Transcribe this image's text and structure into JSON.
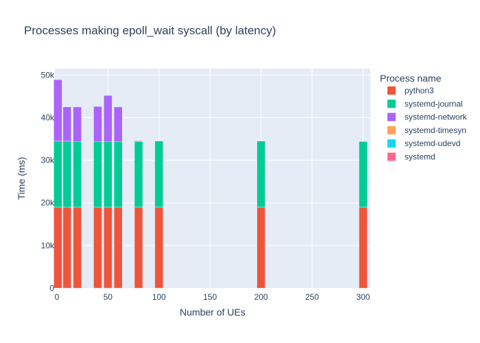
{
  "chart_data": {
    "type": "bar",
    "stacked": true,
    "title": "Processes making epoll_wait syscall (by latency)",
    "xlabel": "Number of UEs",
    "ylabel": "Time (ms)",
    "xlim": [
      -2,
      307
    ],
    "ylim": [
      0,
      51500
    ],
    "xticks": [
      0,
      50,
      100,
      150,
      200,
      250,
      300
    ],
    "xtick_labels": [
      "0",
      "50",
      "100",
      "150",
      "200",
      "250",
      "300"
    ],
    "yticks": [
      0,
      10000,
      20000,
      30000,
      40000,
      50000
    ],
    "ytick_labels": [
      "0",
      "10k",
      "20k",
      "30k",
      "40k",
      "50k"
    ],
    "grid": true,
    "legend_title": "Process name",
    "legend_position": "right",
    "x": [
      1,
      10,
      20,
      40,
      50,
      60,
      80,
      100,
      200,
      300
    ],
    "series": [
      {
        "name": "python3",
        "color": "#ef553b",
        "values": [
          19000,
          19000,
          19000,
          19000,
          19000,
          19000,
          19000,
          19000,
          19000,
          19000
        ]
      },
      {
        "name": "systemd-journal",
        "color": "#00cc96",
        "values": [
          15500,
          15500,
          15400,
          15400,
          15400,
          15400,
          15400,
          15500,
          15500,
          15400
        ]
      },
      {
        "name": "systemd-network",
        "color": "#ab63fa",
        "values": [
          14400,
          8000,
          8100,
          8200,
          10800,
          8100,
          0,
          0,
          0,
          0
        ]
      },
      {
        "name": "systemd-timesyn",
        "color": "#ffa15a",
        "values": [
          0,
          0,
          0,
          0,
          0,
          0,
          80,
          0,
          0,
          0
        ]
      },
      {
        "name": "systemd-udevd",
        "color": "#19d3f3",
        "values": [
          0,
          0,
          0,
          0,
          0,
          0,
          0,
          0,
          0,
          0
        ]
      },
      {
        "name": "systemd",
        "color": "#ff6692",
        "values": [
          0,
          0,
          0,
          0,
          0,
          0,
          150,
          0,
          0,
          0
        ]
      }
    ]
  },
  "colors": {
    "plot_background": "#e5ecf6",
    "grid": "#ffffff",
    "text": "#2a3f5f"
  }
}
